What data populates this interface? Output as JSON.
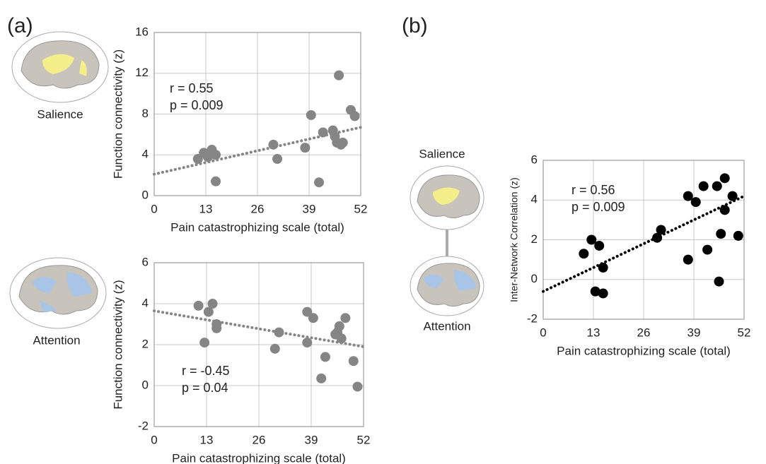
{
  "figure": {
    "panels": [
      "(a)",
      "(b)"
    ],
    "brain_labels": [
      "Salience",
      "Attention",
      "Salience",
      "Attention"
    ]
  },
  "chart_data": [
    {
      "type": "scatter",
      "xlabel": "Pain catastrophizing scale (total)",
      "ylabel": "Function connectivity (z)",
      "color": "#858585",
      "x": [
        11,
        12.5,
        13.5,
        14.5,
        15.5,
        15.5,
        30,
        31,
        38,
        39.5,
        41.5,
        42.5,
        45,
        45.5,
        46,
        46.5,
        47,
        47.5,
        49.5,
        50.5
      ],
      "values": [
        3.6,
        4.2,
        3.8,
        4.5,
        4.0,
        1.4,
        5.0,
        3.6,
        4.7,
        7.9,
        1.3,
        6.2,
        6.4,
        5.8,
        5.2,
        11.8,
        5.0,
        5.2,
        8.4,
        7.8
      ],
      "xlim": [
        0,
        52
      ],
      "xticks": [
        0,
        13,
        26,
        39,
        52
      ],
      "ylim": [
        0,
        16
      ],
      "yticks": [
        0,
        4,
        8,
        12,
        16
      ],
      "grid": true,
      "annotations": [
        "r =  0.55",
        "p = 0.009"
      ],
      "trend": {
        "x": [
          0,
          52
        ],
        "values": [
          2.1,
          6.7
        ]
      }
    },
    {
      "type": "scatter",
      "xlabel": "Pain catastrophizing scale (total)",
      "ylabel": "Function connectivity (z)",
      "color": "#858585",
      "x": [
        11,
        12.5,
        13.5,
        14.5,
        15.5,
        15.5,
        30,
        31,
        38,
        38,
        39.5,
        41.5,
        42.5,
        45,
        45.5,
        46,
        46.5,
        47.5,
        49.5,
        50.5
      ],
      "values": [
        3.9,
        2.1,
        3.6,
        4.0,
        2.8,
        3.0,
        1.8,
        2.6,
        3.6,
        2.1,
        3.3,
        0.35,
        1.4,
        2.5,
        2.6,
        2.9,
        2.3,
        3.3,
        1.2,
        -0.05
      ],
      "xlim": [
        0,
        52
      ],
      "xticks": [
        0,
        13,
        26,
        39,
        52
      ],
      "ylim": [
        -2,
        6
      ],
      "yticks": [
        -2,
        0,
        2,
        4,
        6
      ],
      "grid": true,
      "annotations": [
        "r = -0.45",
        "p = 0.04"
      ],
      "trend": {
        "x": [
          0,
          52
        ],
        "values": [
          3.65,
          1.9
        ]
      }
    },
    {
      "type": "scatter",
      "xlabel": "Pain catastrophizing scale (total)",
      "ylabel": "Inter-Network Correlation (z)",
      "color": "#000000",
      "x": [
        10.5,
        12.5,
        13.5,
        14.5,
        15.5,
        15.5,
        29.5,
        30.5,
        37.5,
        37.5,
        39.5,
        41.5,
        42.5,
        45,
        45.5,
        46,
        47,
        47,
        49,
        50.5
      ],
      "values": [
        1.3,
        2.0,
        -0.6,
        1.7,
        0.6,
        -0.7,
        2.1,
        2.5,
        4.2,
        1.0,
        3.9,
        4.7,
        1.5,
        4.7,
        -0.1,
        2.3,
        5.1,
        3.5,
        4.2,
        2.2
      ],
      "xlim": [
        0,
        52
      ],
      "xticks": [
        0,
        13,
        26,
        39,
        52
      ],
      "ylim": [
        -2,
        6
      ],
      "yticks": [
        -2,
        0,
        2,
        4,
        6
      ],
      "grid": true,
      "annotations": [
        "r =  0.56",
        "p = 0.009"
      ],
      "trend": {
        "x": [
          0,
          52
        ],
        "values": [
          -0.6,
          4.2
        ]
      }
    }
  ]
}
